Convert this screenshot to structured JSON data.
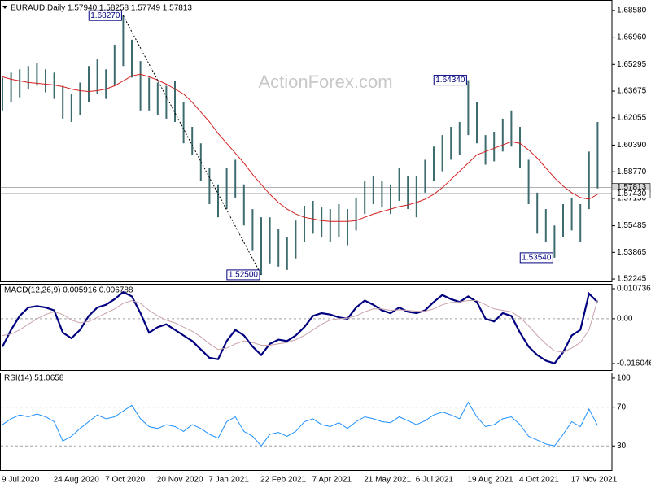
{
  "chart_data": [
    {
      "type": "range",
      "title": "EURAUD,Daily  1.57940 1.58258 1.57749 1.57813",
      "watermark": "ActionForex.com",
      "categories": [
        "9 Jul 2020",
        null,
        null,
        null,
        null,
        null,
        "24 Aug 2020",
        null,
        null,
        null,
        null,
        null,
        "7 Oct 2020",
        null,
        null,
        null,
        null,
        null,
        "20 Nov 2020",
        null,
        null,
        null,
        null,
        null,
        "7 Jan 2021",
        null,
        null,
        null,
        null,
        null,
        "22 Feb 2021",
        null,
        null,
        null,
        null,
        null,
        "7 Apr 2021",
        null,
        null,
        null,
        null,
        null,
        "21 May 2021",
        null,
        null,
        null,
        null,
        null,
        "6 Jul 2021",
        null,
        null,
        null,
        null,
        null,
        "19 Aug 2021",
        null,
        null,
        null,
        null,
        null,
        "4 Oct 2021",
        null,
        null,
        null,
        null,
        null,
        "17 Nov 2021",
        null,
        null,
        null
      ],
      "high": [
        1.645,
        1.648,
        1.65,
        1.652,
        1.654,
        1.65,
        1.648,
        1.64,
        1.635,
        1.642,
        1.652,
        1.656,
        1.65,
        1.665,
        1.6827,
        1.668,
        1.655,
        1.645,
        1.642,
        1.64,
        1.643,
        1.63,
        1.615,
        1.605,
        1.59,
        1.58,
        1.59,
        1.595,
        1.58,
        1.565,
        1.56,
        1.56,
        1.553,
        1.548,
        1.558,
        1.567,
        1.57,
        1.566,
        1.565,
        1.568,
        1.565,
        1.572,
        1.582,
        1.585,
        1.582,
        1.58,
        1.59,
        1.585,
        1.585,
        1.595,
        1.603,
        1.61,
        1.615,
        1.618,
        1.6434,
        1.63,
        1.61,
        1.612,
        1.62,
        1.625,
        1.615,
        1.595,
        1.575,
        1.565,
        1.555,
        1.568,
        1.572,
        1.568,
        1.6,
        1.618
      ],
      "low": [
        1.625,
        1.63,
        1.633,
        1.638,
        1.64,
        1.636,
        1.632,
        1.62,
        1.618,
        1.622,
        1.63,
        1.635,
        1.632,
        1.64,
        1.652,
        1.645,
        1.625,
        1.625,
        1.622,
        1.62,
        1.618,
        1.605,
        1.598,
        1.582,
        1.568,
        1.56,
        1.565,
        1.572,
        1.555,
        1.54,
        1.525,
        1.532,
        1.53,
        1.528,
        1.535,
        1.545,
        1.55,
        1.548,
        1.545,
        1.548,
        1.543,
        1.552,
        1.562,
        1.568,
        1.566,
        1.562,
        1.57,
        1.565,
        1.56,
        1.575,
        1.582,
        1.588,
        1.595,
        1.598,
        1.61,
        1.605,
        1.592,
        1.594,
        1.6,
        1.603,
        1.59,
        1.568,
        1.55,
        1.545,
        1.5354,
        1.548,
        1.552,
        1.545,
        1.565,
        1.5775
      ],
      "color": "#3d6b6e",
      "overlay": {
        "color": "#d42020",
        "values": [
          1.6455,
          1.644,
          1.643,
          1.642,
          1.6415,
          1.641,
          1.6405,
          1.6395,
          1.638,
          1.637,
          1.6365,
          1.637,
          1.638,
          1.64,
          1.643,
          1.646,
          1.647,
          1.6455,
          1.6435,
          1.641,
          1.638,
          1.635,
          1.63,
          1.624,
          1.618,
          1.611,
          1.605,
          1.599,
          1.593,
          1.586,
          1.58,
          1.574,
          1.569,
          1.565,
          1.562,
          1.56,
          1.559,
          1.558,
          1.5575,
          1.5575,
          1.5575,
          1.558,
          1.56,
          1.562,
          1.5635,
          1.565,
          1.5665,
          1.5675,
          1.569,
          1.571,
          1.574,
          1.578,
          1.583,
          1.588,
          1.593,
          1.598,
          1.6,
          1.602,
          1.604,
          1.606,
          1.605,
          1.601,
          1.596,
          1.59,
          1.584,
          1.579,
          1.575,
          1.572,
          1.571,
          1.574
        ]
      },
      "ylim": [
        1.521,
        1.6907
      ],
      "yticks": [
        {
          "value": 1.6858,
          "label": "1.68580"
        },
        {
          "value": 1.6696,
          "label": "1.66960"
        },
        1.65295,
        1.63675,
        1.62055,
        {
          "value": 1.6039,
          "label": "1.60390"
        },
        {
          "value": 1.5877,
          "label": "1.58770"
        },
        {
          "value": 1.5715,
          "label": "1.57150"
        },
        1.55485,
        1.53865,
        1.52245
      ],
      "price_lines": [
        1.57813,
        {
          "value": 1.5743,
          "label": "1.57430"
        }
      ],
      "annotations": [
        {
          "value": 1.6827,
          "label": "1.68270"
        },
        {
          "value": 1.6434,
          "label": "1.64340"
        },
        {
          "value": 1.525,
          "label": "1.52500"
        },
        {
          "value": 1.5354,
          "label": "1.53540"
        }
      ]
    },
    {
      "type": "line",
      "title": "MACD(12,26,9) 0.005916 0.006788",
      "ylim": [
        -0.01867,
        0.01219
      ],
      "yticks": [
        0.010736,
        {
          "value": 0,
          "label": "0.00"
        },
        -0.016046
      ],
      "levels": [
        0
      ],
      "series": [
        {
          "color": "#000080",
          "width": 2.2,
          "values": [
            -0.01,
            -0.004,
            0.001,
            0.004,
            0.0045,
            0.004,
            0.003,
            -0.005,
            -0.007,
            -0.004,
            0.001,
            0.004,
            0.005,
            0.007,
            0.0095,
            0.008,
            0.002,
            -0.005,
            -0.003,
            -0.002,
            -0.004,
            -0.006,
            -0.008,
            -0.011,
            -0.014,
            -0.0145,
            -0.008,
            -0.004,
            -0.006,
            -0.01,
            -0.013,
            -0.009,
            -0.0075,
            -0.008,
            -0.006,
            -0.003,
            0.001,
            0.002,
            0.0015,
            0.0005,
            0.0,
            0.004,
            0.0065,
            0.005,
            0.003,
            0.002,
            0.004,
            0.0025,
            0.002,
            0.003,
            0.006,
            0.0085,
            0.007,
            0.006,
            0.008,
            0.006,
            0.0,
            -0.001,
            0.002,
            0.001,
            -0.005,
            -0.01,
            -0.013,
            -0.015,
            -0.016,
            -0.012,
            -0.006,
            -0.004,
            0.009,
            0.005916
          ]
        },
        {
          "color": "#c9a3a8",
          "width": 1,
          "values": [
            -0.006,
            -0.0055,
            -0.004,
            -0.002,
            0.0,
            0.0015,
            0.0025,
            0.0015,
            -0.0005,
            -0.0015,
            -0.001,
            0.0005,
            0.002,
            0.0035,
            0.0055,
            0.0065,
            0.0055,
            0.003,
            0.001,
            -0.0005,
            -0.0015,
            -0.003,
            -0.0045,
            -0.0065,
            -0.009,
            -0.011,
            -0.0105,
            -0.009,
            -0.008,
            -0.0085,
            -0.0095,
            -0.0095,
            -0.009,
            -0.0085,
            -0.0075,
            -0.006,
            -0.004,
            -0.002,
            -0.0005,
            0.0,
            0.0002,
            0.001,
            0.0025,
            0.0035,
            0.0035,
            0.003,
            0.0032,
            0.003,
            0.0027,
            0.0027,
            0.0035,
            0.005,
            0.0058,
            0.006,
            0.0065,
            0.0065,
            0.005,
            0.0035,
            0.003,
            0.0025,
            0.0005,
            -0.0025,
            -0.006,
            -0.009,
            -0.0115,
            -0.012,
            -0.0105,
            -0.0085,
            -0.004,
            0.006788
          ]
        }
      ]
    },
    {
      "type": "line",
      "title": "RSI(14) 51.0658",
      "ylim": [
        5,
        105
      ],
      "yticks": [
        100,
        70,
        30
      ],
      "levels": [
        70,
        30
      ],
      "series": [
        {
          "color": "#1e90ff",
          "width": 1,
          "values": [
            52,
            58,
            62,
            60,
            63,
            60,
            55,
            35,
            40,
            48,
            55,
            62,
            58,
            60,
            66,
            72,
            58,
            50,
            48,
            52,
            50,
            45,
            52,
            48,
            42,
            38,
            55,
            60,
            45,
            40,
            30,
            42,
            44,
            40,
            45,
            55,
            58,
            52,
            50,
            54,
            48,
            55,
            60,
            58,
            55,
            54,
            60,
            56,
            52,
            56,
            62,
            65,
            62,
            58,
            75,
            60,
            50,
            52,
            58,
            60,
            52,
            40,
            36,
            32,
            30,
            42,
            55,
            50,
            68,
            51.0658
          ]
        }
      ]
    }
  ]
}
